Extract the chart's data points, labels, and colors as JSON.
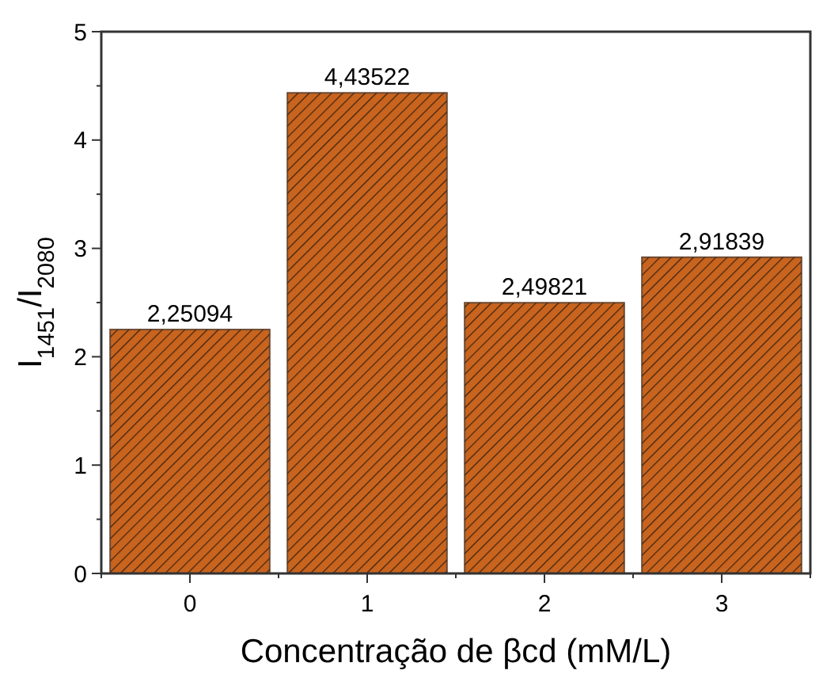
{
  "chart_data": {
    "type": "bar",
    "xlabel": "Concentração de βcd (mM/L)",
    "ylabel": "I$_{1451}$/I$_{2080}$",
    "categories": [
      "0",
      "1",
      "2",
      "3"
    ],
    "values": [
      2.25094,
      4.43522,
      2.49821,
      2.91839
    ],
    "value_labels": [
      "2,25094",
      "4,43522",
      "2,49821",
      "2,91839"
    ],
    "color": "#c8641e",
    "ylim": [
      0,
      5
    ],
    "yticks": [
      0,
      {
        "value": 0.5,
        "label": null
      },
      1,
      {
        "value": 1.5,
        "label": null
      },
      2,
      {
        "value": 2.5,
        "label": null
      },
      3,
      {
        "value": 3.5,
        "label": null
      },
      4,
      {
        "value": 4.5,
        "label": null
      },
      5
    ]
  }
}
